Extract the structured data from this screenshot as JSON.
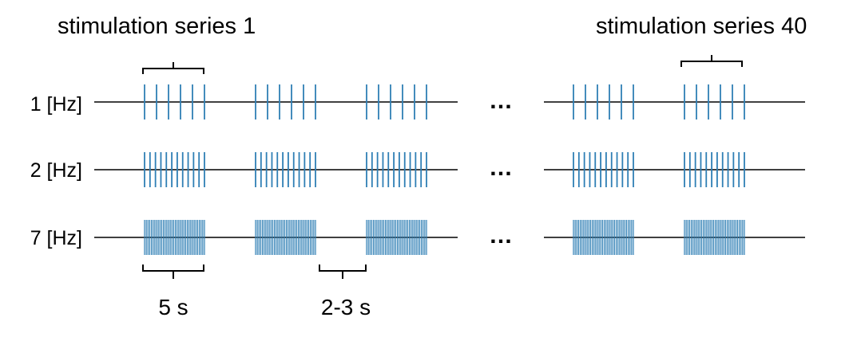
{
  "titles": {
    "series_first": "stimulation series 1",
    "series_last": "stimulation series 40"
  },
  "rows": [
    {
      "label": "1 [Hz]",
      "frequency_hz": 1,
      "pulses_per_block": 6
    },
    {
      "label": "2 [Hz]",
      "frequency_hz": 2,
      "pulses_per_block": 12
    },
    {
      "label": "7 [Hz]",
      "frequency_hz": 7,
      "pulses_per_block": 36
    }
  ],
  "ellipsis": "…",
  "durations": {
    "stimulation": "5 s",
    "pause": "2-3 s"
  },
  "blocks_shown_per_row": 5,
  "colors": {
    "pulse": "#2F7FB5",
    "baseline": "#000000",
    "text": "#000000"
  }
}
